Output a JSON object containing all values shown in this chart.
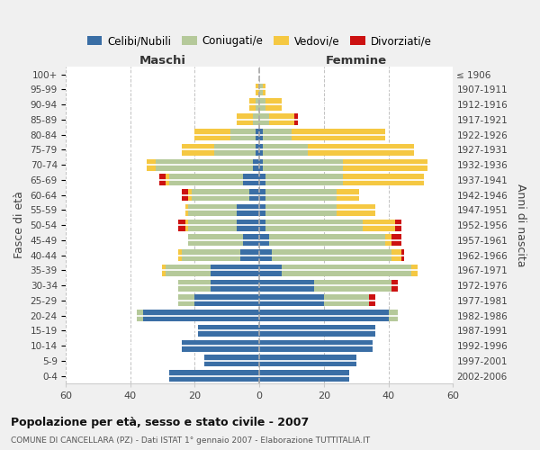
{
  "age_groups_bottom_to_top": [
    "0-4",
    "5-9",
    "10-14",
    "15-19",
    "20-24",
    "25-29",
    "30-34",
    "35-39",
    "40-44",
    "45-49",
    "50-54",
    "55-59",
    "60-64",
    "65-69",
    "70-74",
    "75-79",
    "80-84",
    "85-89",
    "90-94",
    "95-99",
    "100+"
  ],
  "birth_years_bottom_to_top": [
    "2002-2006",
    "1997-2001",
    "1992-1996",
    "1987-1991",
    "1982-1986",
    "1977-1981",
    "1972-1976",
    "1967-1971",
    "1962-1966",
    "1957-1961",
    "1952-1956",
    "1947-1951",
    "1942-1946",
    "1937-1941",
    "1932-1936",
    "1927-1931",
    "1922-1926",
    "1917-1921",
    "1912-1916",
    "1907-1911",
    "≤ 1906"
  ],
  "colors": {
    "celibi": "#3a6ea5",
    "coniugati": "#b5c99a",
    "vedovi": "#f5c842",
    "divorziati": "#cc1111"
  },
  "maschi_bottom_to_top": {
    "celibi": [
      28,
      17,
      24,
      19,
      36,
      20,
      15,
      15,
      6,
      5,
      7,
      7,
      3,
      5,
      2,
      1,
      1,
      0,
      0,
      0,
      0
    ],
    "coniugati": [
      0,
      0,
      0,
      0,
      2,
      5,
      10,
      14,
      18,
      17,
      15,
      15,
      18,
      23,
      30,
      13,
      8,
      2,
      1,
      0,
      0
    ],
    "vedovi": [
      0,
      0,
      0,
      0,
      0,
      0,
      0,
      1,
      1,
      0,
      1,
      1,
      1,
      1,
      3,
      10,
      11,
      5,
      2,
      1,
      0
    ],
    "divorziati": [
      0,
      0,
      0,
      0,
      0,
      0,
      0,
      0,
      0,
      0,
      2,
      0,
      2,
      2,
      0,
      0,
      0,
      0,
      0,
      0,
      0
    ]
  },
  "femmine_bottom_to_top": {
    "celibi": [
      28,
      30,
      35,
      36,
      40,
      20,
      17,
      7,
      4,
      3,
      2,
      2,
      2,
      2,
      1,
      1,
      1,
      0,
      0,
      0,
      0
    ],
    "coniugati": [
      0,
      0,
      0,
      0,
      3,
      14,
      24,
      40,
      37,
      36,
      30,
      22,
      22,
      24,
      25,
      14,
      9,
      3,
      2,
      1,
      0
    ],
    "vedovi": [
      0,
      0,
      0,
      0,
      0,
      0,
      0,
      2,
      3,
      2,
      10,
      12,
      7,
      25,
      26,
      33,
      29,
      8,
      5,
      1,
      0
    ],
    "divorziati": [
      0,
      0,
      0,
      0,
      0,
      2,
      2,
      0,
      1,
      3,
      2,
      0,
      0,
      0,
      0,
      0,
      0,
      1,
      0,
      0,
      0
    ]
  },
  "title": "Popolazione per età, sesso e stato civile - 2007",
  "subtitle": "COMUNE DI CANCELLARA (PZ) - Dati ISTAT 1° gennaio 2007 - Elaborazione TUTTITALIA.IT",
  "xlabel_left": "Maschi",
  "xlabel_right": "Femmine",
  "ylabel_left": "Fasce di età",
  "ylabel_right": "Anni di nascita",
  "xlim": 60,
  "background_color": "#f0f0f0",
  "plot_bg_color": "#ffffff",
  "legend_labels": [
    "Celibi/Nubili",
    "Coniugati/e",
    "Vedovi/e",
    "Divorziati/e"
  ]
}
